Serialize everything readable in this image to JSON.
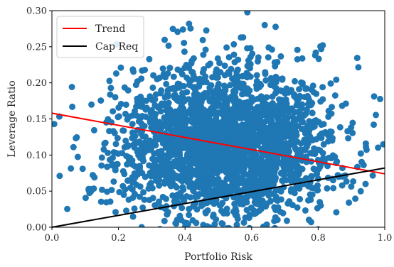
{
  "chart_data": {
    "type": "scatter",
    "xlabel": "Portfolio Risk",
    "ylabel": "Leverage Ratio",
    "xlim": [
      0.0,
      1.0
    ],
    "ylim": [
      0.0,
      0.3
    ],
    "x_ticks": [
      "0.0",
      "0.2",
      "0.4",
      "0.6",
      "0.8",
      "1.0"
    ],
    "x_tick_values": [
      0.0,
      0.2,
      0.4,
      0.6,
      0.8,
      1.0
    ],
    "y_ticks": [
      "0.00",
      "0.05",
      "0.10",
      "0.15",
      "0.20",
      "0.25",
      "0.30"
    ],
    "y_tick_values": [
      0.0,
      0.05,
      0.1,
      0.15,
      0.2,
      0.25,
      0.3
    ],
    "grid": false,
    "legend_position": "top-left",
    "scatter_color": "#1f77b4",
    "scatter_cluster": {
      "center": [
        0.52,
        0.115
      ],
      "spread": [
        0.16,
        0.045
      ],
      "x_range": [
        0.0,
        1.0
      ],
      "y_range": [
        0.0,
        0.3
      ]
    },
    "lines": [
      {
        "name": "Trend",
        "color": "#ff0000",
        "x": [
          0.0,
          1.0
        ],
        "y": [
          0.158,
          0.074
        ]
      },
      {
        "name": "Cap Req",
        "color": "#000000",
        "x": [
          0.0,
          1.0
        ],
        "y": [
          0.0,
          0.082
        ]
      }
    ]
  }
}
